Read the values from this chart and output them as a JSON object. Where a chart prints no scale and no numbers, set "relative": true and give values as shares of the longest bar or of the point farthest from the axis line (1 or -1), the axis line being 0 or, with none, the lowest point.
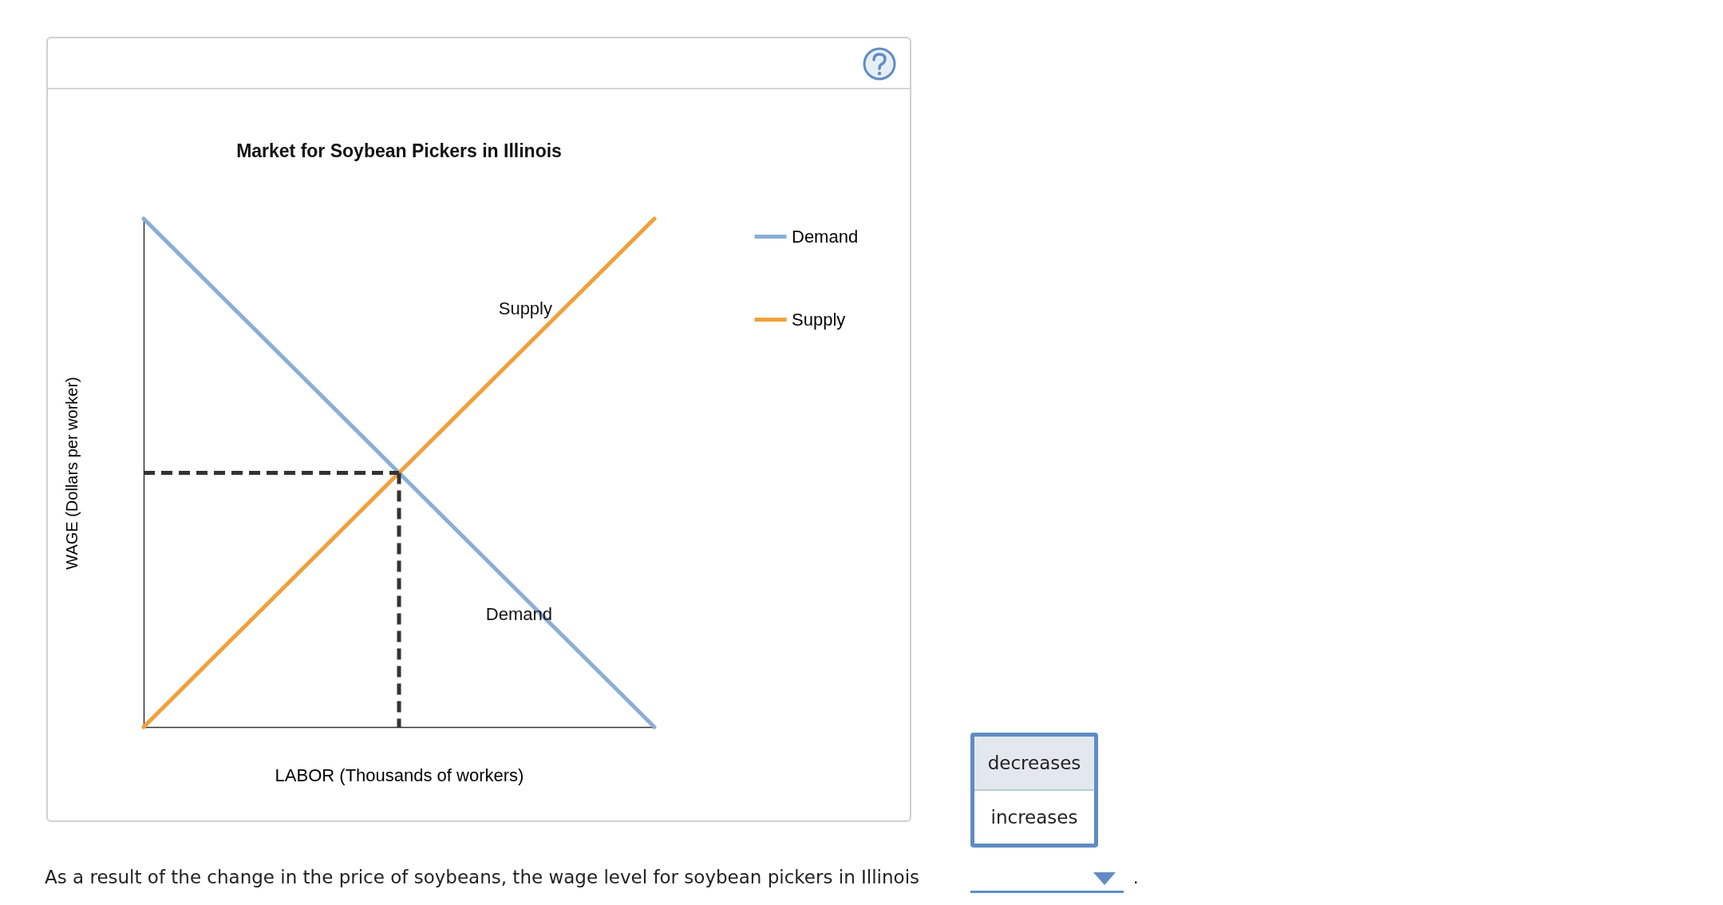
{
  "chart_data": {
    "type": "line",
    "title": "Market for Soybean Pickers in Illinois",
    "xlabel": "LABOR (Thousands of workers)",
    "ylabel": "WAGE (Dollars per worker)",
    "relative": true,
    "tick_labels": false,
    "grid": false,
    "legend": "right",
    "categories": [
      null,
      null,
      null
    ],
    "series": [
      {
        "name": "Demand",
        "color": "#8aaed6",
        "values": [
          1,
          0.5,
          0
        ]
      },
      {
        "name": "Supply",
        "color": "#f0a03c",
        "values": [
          0,
          0.5,
          1
        ]
      }
    ],
    "ref_lines": [
      {
        "axis": "y",
        "value": 0.5,
        "color": "#333333",
        "line_style": "dashed"
      }
    ],
    "annotations": [
      "As a result of the change in the price of soybeans, the wage level for soybean pickers in Illinois",
      ".",
      "decreases",
      "increases"
    ]
  }
}
